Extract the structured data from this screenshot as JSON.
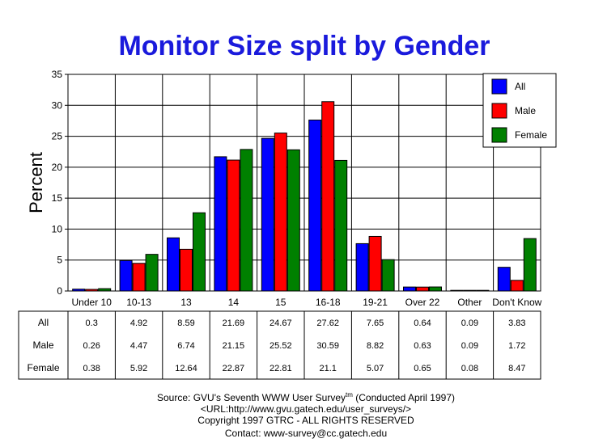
{
  "chart_data": {
    "type": "bar",
    "title": "Monitor Size split by Gender",
    "ylabel": "Percent",
    "xlabel": "",
    "ylim": [
      0,
      35
    ],
    "yticks": [
      0,
      5,
      10,
      15,
      20,
      25,
      30,
      35
    ],
    "grid": true,
    "legend_position": "top-right",
    "categories": [
      "Under 10",
      "10-13",
      "13",
      "14",
      "15",
      "16-18",
      "19-21",
      "Over 22",
      "Other",
      "Don't Know"
    ],
    "series": [
      {
        "name": "All",
        "color": "#0000ff",
        "values": [
          0.3,
          4.92,
          8.59,
          21.69,
          24.67,
          27.62,
          7.65,
          0.64,
          0.09,
          3.83
        ]
      },
      {
        "name": "Male",
        "color": "#ff0000",
        "values": [
          0.26,
          4.47,
          6.74,
          21.15,
          25.52,
          30.59,
          8.82,
          0.63,
          0.09,
          1.72
        ]
      },
      {
        "name": "Female",
        "color": "#008000",
        "values": [
          0.38,
          5.92,
          12.64,
          22.87,
          22.81,
          21.1,
          5.07,
          0.65,
          0.08,
          8.47
        ]
      }
    ],
    "table": {
      "rows": [
        {
          "label": "All",
          "cells": [
            "0.3",
            "4.92",
            "8.59",
            "21.69",
            "24.67",
            "27.62",
            "7.65",
            "0.64",
            "0.09",
            "3.83"
          ]
        },
        {
          "label": "Male",
          "cells": [
            "0.26",
            "4.47",
            "6.74",
            "21.15",
            "25.52",
            "30.59",
            "8.82",
            "0.63",
            "0.09",
            "1.72"
          ]
        },
        {
          "label": "Female",
          "cells": [
            "0.38",
            "5.92",
            "12.64",
            "22.87",
            "22.81",
            "21.1",
            "5.07",
            "0.65",
            "0.08",
            "8.47"
          ]
        }
      ]
    }
  },
  "footer": {
    "source_prefix": "Source: GVU's Seventh WWW User Survey",
    "source_superscript": "tm",
    "source_suffix": " (Conducted April 1997)",
    "url": "<URL:http://www.gvu.gatech.edu/user_surveys/>",
    "copyright": "Copyright 1997 GTRC - ALL RIGHTS RESERVED",
    "contact": "Contact: www-survey@cc.gatech.edu"
  }
}
